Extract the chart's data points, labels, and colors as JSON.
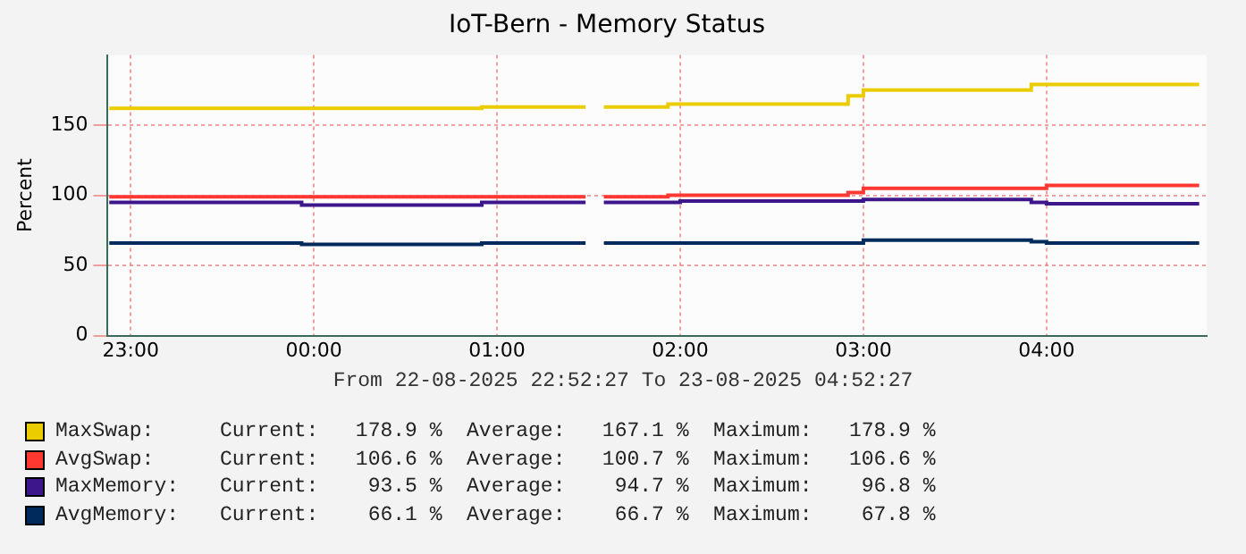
{
  "chart_data": {
    "type": "step",
    "title": "IoT-Bern - Memory Status",
    "ylabel": "Percent",
    "annotations": [
      "From 22-08-2025 22:52:27 To 23-08-2025 04:52:27",
      "Current:   178.9 %  Average:   167.1 %  Maximum:   178.9 %",
      "Current:   106.6 %  Average:   100.7 %  Maximum:   106.6 %",
      "Current:    93.5 %  Average:    94.7 %  Maximum:    96.8 %",
      "Current:    66.1 %  Average:    66.7 %  Maximum:    67.8 %"
    ],
    "x": [
      "2025-08-22T22:53",
      "2025-08-22T23:56",
      "2025-08-23T00:55",
      "2025-08-23T01:29",
      "2025-08-23T01:30",
      "2025-08-23T01:35",
      "2025-08-23T01:56",
      "2025-08-23T02:00",
      "2025-08-23T02:55",
      "2025-08-23T03:00",
      "2025-08-23T03:55",
      "2025-08-23T04:00",
      "2025-08-23T04:50"
    ],
    "series": [
      {
        "name": "MaxSwap:",
        "color": "#eacc00",
        "values": [
          162,
          162,
          163,
          163,
          null,
          163,
          165,
          165,
          171,
          175,
          179,
          179,
          179
        ]
      },
      {
        "name": "AvgSwap:",
        "color": "#ff3932",
        "values": [
          99,
          99,
          99,
          99,
          null,
          99,
          100,
          100,
          102,
          105,
          105,
          107,
          107
        ]
      },
      {
        "name": "MaxMemory:",
        "color": "#3d168b",
        "values": [
          95,
          93,
          95,
          95,
          null,
          95,
          95,
          96,
          96,
          97,
          95,
          94,
          94
        ]
      },
      {
        "name": "AvgMemory:",
        "color": "#002a5c",
        "values": [
          66,
          65,
          66,
          66,
          null,
          66,
          66,
          66,
          66,
          68,
          67,
          66,
          66
        ]
      }
    ],
    "xlim": [
      "2025-08-22T22:52:27",
      "2025-08-23T04:52:27"
    ],
    "xticks": [
      {
        "value": "2025-08-22T23:00",
        "label": "23:00"
      },
      {
        "value": "2025-08-23T00:00",
        "label": "00:00"
      },
      {
        "value": "2025-08-23T01:00",
        "label": "01:00"
      },
      {
        "value": "2025-08-23T02:00",
        "label": "02:00"
      },
      {
        "value": "2025-08-23T03:00",
        "label": "03:00"
      },
      {
        "value": "2025-08-23T04:00",
        "label": "04:00"
      }
    ],
    "ylim": [
      0,
      200
    ],
    "yticks": [
      0,
      50,
      100,
      150
    ],
    "grid": true,
    "legend": "bottom"
  }
}
